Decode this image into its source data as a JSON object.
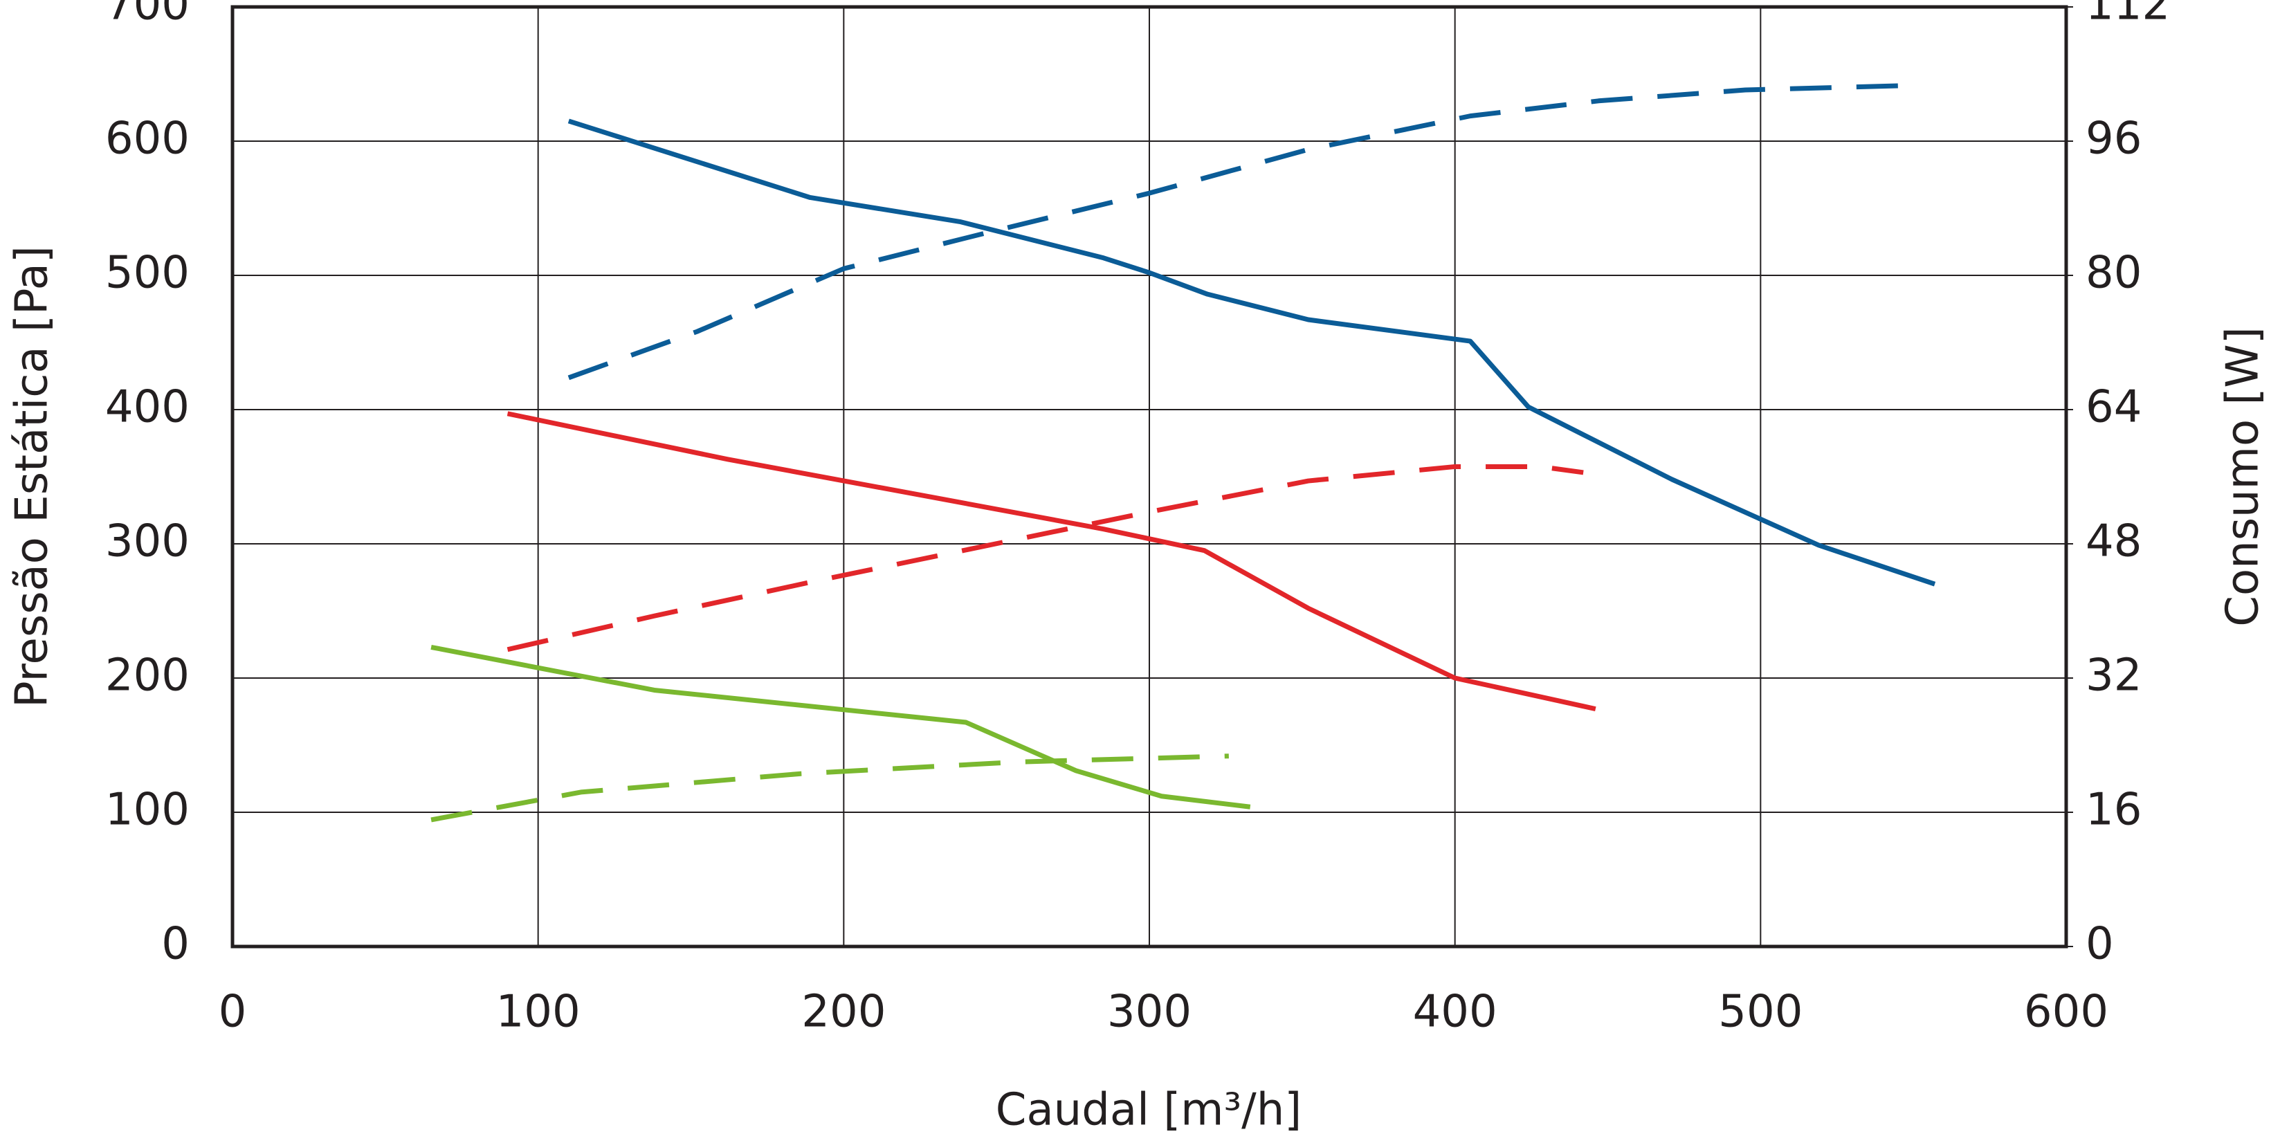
{
  "chart_data": {
    "type": "line",
    "x_label": "Caudal [m³/h]",
    "y_label": "Pressão Estática [Pa]",
    "y2_label": "Consumo [W]",
    "xlim": [
      0,
      600
    ],
    "xticks": [
      0,
      100,
      200,
      300,
      400,
      500,
      600
    ],
    "ylim": [
      0,
      700
    ],
    "yticks": [
      0,
      100,
      200,
      300,
      400,
      500,
      600,
      700
    ],
    "y2lim": [
      0,
      112
    ],
    "y2ticks": [
      0,
      16,
      32,
      48,
      64,
      80,
      96,
      112
    ],
    "grid": true,
    "series": [
      {
        "color": "#0b5c97",
        "dashed": false,
        "x": [
          110,
          189,
          238,
          285,
          300,
          319,
          352,
          405,
          424,
          471,
          519,
          557
        ],
        "values": [
          615,
          558,
          540,
          513,
          502,
          486,
          467,
          451,
          402,
          348,
          299,
          270
        ]
      },
      {
        "color": "#0b5c97",
        "dashed": true,
        "axis": "y2",
        "x": [
          110,
          152,
          200,
          247,
          300,
          352,
          405,
          447,
          495,
          545
        ],
        "values": [
          67.8,
          73.3,
          80.8,
          85.1,
          89.8,
          95.0,
          99.0,
          100.8,
          102.1,
          102.6
        ]
      },
      {
        "color": "#e2262a",
        "dashed": false,
        "x": [
          90,
          162,
          233,
          285,
          318,
          352,
          400,
          446
        ],
        "values": [
          397,
          363,
          333,
          311,
          295,
          252,
          200,
          177
        ]
      },
      {
        "color": "#e2262a",
        "dashed": true,
        "axis": "y2",
        "x": [
          90,
          138,
          190,
          247,
          300,
          352,
          400,
          428,
          442
        ],
        "values": [
          35.4,
          39.4,
          43.5,
          47.8,
          51.8,
          55.5,
          57.2,
          57.2,
          56.5
        ]
      },
      {
        "color": "#7ab82f",
        "dashed": false,
        "x": [
          65,
          138,
          240,
          276,
          304,
          333
        ],
        "values": [
          223,
          191,
          167,
          131,
          112,
          104
        ]
      },
      {
        "color": "#7ab82f",
        "dashed": true,
        "axis": "y2",
        "x": [
          65,
          114,
          186,
          257,
          326
        ],
        "values": [
          15.1,
          18.4,
          20.6,
          22.0,
          22.7
        ]
      }
    ]
  }
}
